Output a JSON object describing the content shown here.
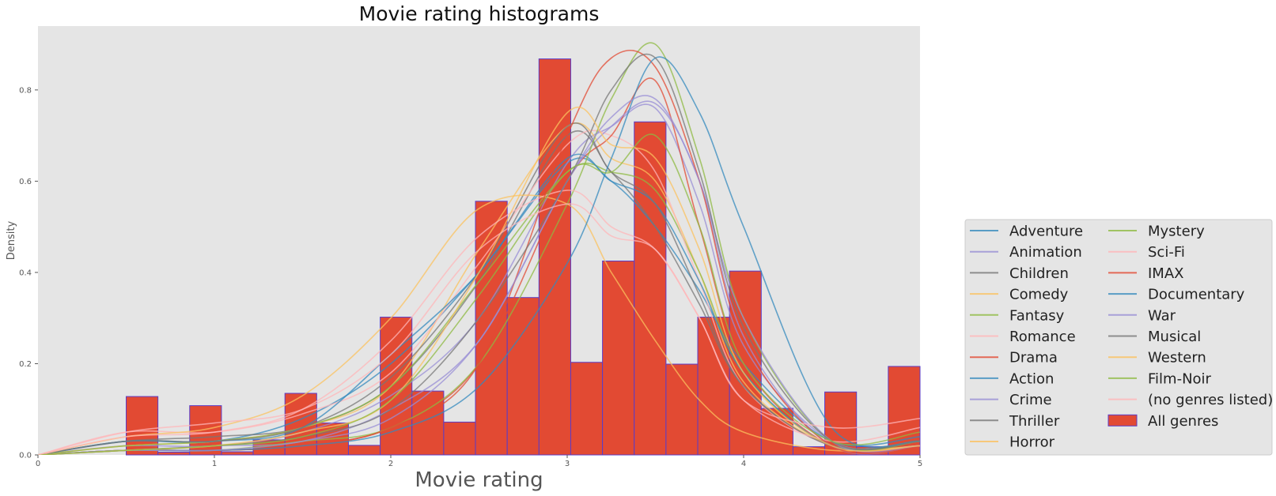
{
  "chart_data": {
    "type": "bar",
    "title": "Movie rating histograms",
    "xlabel": "Movie rating",
    "ylabel": "Density",
    "xlim": [
      0,
      5
    ],
    "ylim": [
      0,
      0.94
    ],
    "x_ticks": [
      "0",
      "1",
      "2",
      "3",
      "4",
      "5"
    ],
    "y_ticks": [
      "0.0",
      "0.2",
      "0.4",
      "0.6",
      "0.8"
    ],
    "grid": false,
    "legend_position": "right",
    "histogram": {
      "name": "All genres",
      "color": "#E24A33",
      "edge_color": "#5a3cc8",
      "bin_edges": [
        0.5,
        0.68,
        0.86,
        1.04,
        1.22,
        1.4,
        1.58,
        1.76,
        1.94,
        2.12,
        2.3,
        2.48,
        2.66,
        2.84,
        3.02,
        3.2,
        3.38,
        3.56,
        3.74,
        3.92,
        4.1,
        4.28,
        4.46,
        4.64,
        4.82,
        5.0
      ],
      "values": [
        0.128,
        0.006,
        0.108,
        0.007,
        0.033,
        0.135,
        0.07,
        0.021,
        0.302,
        0.14,
        0.072,
        0.556,
        0.345,
        0.868,
        0.203,
        0.425,
        0.73,
        0.199,
        0.302,
        0.403,
        0.102,
        0.018,
        0.138,
        0.018,
        0.194
      ]
    },
    "series": [
      {
        "name": "Adventure",
        "color": "#348ABD",
        "x": [
          0,
          0.5,
          1.0,
          1.5,
          2.0,
          2.5,
          3.0,
          3.25,
          3.5,
          3.75,
          4.0,
          4.5,
          5.0
        ],
        "values": [
          0,
          0.03,
          0.03,
          0.08,
          0.2,
          0.4,
          0.64,
          0.6,
          0.5,
          0.36,
          0.2,
          0.03,
          0.04
        ]
      },
      {
        "name": "Animation",
        "color": "#988ED5",
        "x": [
          0,
          0.5,
          1.0,
          1.5,
          2.0,
          2.5,
          3.0,
          3.25,
          3.5,
          3.75,
          4.0,
          4.5,
          5.0
        ],
        "values": [
          0,
          0.02,
          0.02,
          0.05,
          0.13,
          0.3,
          0.64,
          0.72,
          0.76,
          0.55,
          0.24,
          0.03,
          0.02
        ]
      },
      {
        "name": "Children",
        "color": "#777777",
        "x": [
          0,
          0.5,
          1.0,
          1.5,
          2.0,
          2.5,
          3.0,
          3.25,
          3.5,
          3.75,
          4.0,
          4.5,
          5.0
        ],
        "values": [
          0,
          0.03,
          0.04,
          0.06,
          0.15,
          0.38,
          0.7,
          0.62,
          0.5,
          0.33,
          0.15,
          0.02,
          0.03
        ]
      },
      {
        "name": "Comedy",
        "color": "#FBC15E",
        "x": [
          0,
          0.5,
          1.0,
          1.5,
          2.0,
          2.5,
          3.0,
          3.25,
          3.5,
          3.75,
          4.0,
          4.5,
          5.0
        ],
        "values": [
          0,
          0.02,
          0.03,
          0.06,
          0.15,
          0.45,
          0.72,
          0.65,
          0.6,
          0.4,
          0.16,
          0.02,
          0.02
        ]
      },
      {
        "name": "Fantasy",
        "color": "#8EBA42",
        "x": [
          0,
          0.5,
          1.0,
          1.5,
          2.0,
          2.5,
          3.0,
          3.25,
          3.5,
          3.75,
          4.0,
          4.5,
          5.0
        ],
        "values": [
          0,
          0.02,
          0.03,
          0.06,
          0.15,
          0.38,
          0.62,
          0.62,
          0.58,
          0.4,
          0.18,
          0.02,
          0.03
        ]
      },
      {
        "name": "Romance",
        "color": "#FFB5B8",
        "x": [
          0,
          0.5,
          1.0,
          1.5,
          2.0,
          2.5,
          3.0,
          3.25,
          3.5,
          3.75,
          4.0,
          4.5,
          5.0
        ],
        "values": [
          0,
          0.05,
          0.05,
          0.09,
          0.18,
          0.42,
          0.68,
          0.7,
          0.62,
          0.38,
          0.15,
          0.02,
          0.03
        ]
      },
      {
        "name": "Drama",
        "color": "#E24A33",
        "x": [
          0,
          0.5,
          1.0,
          1.5,
          2.0,
          2.5,
          3.0,
          3.25,
          3.5,
          3.75,
          4.0,
          4.5,
          5.0
        ],
        "values": [
          0,
          0.01,
          0.01,
          0.02,
          0.06,
          0.2,
          0.6,
          0.7,
          0.82,
          0.5,
          0.2,
          0.02,
          0.02
        ]
      },
      {
        "name": "Action",
        "color": "#348ABD",
        "x": [
          0,
          0.5,
          1.0,
          1.5,
          2.0,
          2.5,
          3.0,
          3.25,
          3.5,
          3.75,
          4.0,
          4.5,
          5.0
        ],
        "values": [
          0,
          0.03,
          0.03,
          0.06,
          0.22,
          0.4,
          0.65,
          0.6,
          0.55,
          0.38,
          0.18,
          0.02,
          0.03
        ]
      },
      {
        "name": "Crime",
        "color": "#988ED5",
        "x": [
          0,
          0.5,
          1.0,
          1.5,
          2.0,
          2.5,
          3.0,
          3.25,
          3.5,
          3.75,
          4.0,
          4.5,
          5.0
        ],
        "values": [
          0,
          0.01,
          0.02,
          0.03,
          0.1,
          0.25,
          0.6,
          0.72,
          0.77,
          0.6,
          0.26,
          0.02,
          0.02
        ]
      },
      {
        "name": "Thriller",
        "color": "#777777",
        "x": [
          0,
          0.5,
          1.0,
          1.5,
          2.0,
          2.5,
          3.0,
          3.25,
          3.5,
          3.75,
          4.0,
          4.5,
          5.0
        ],
        "values": [
          0,
          0.03,
          0.03,
          0.06,
          0.17,
          0.4,
          0.72,
          0.62,
          0.55,
          0.35,
          0.15,
          0.02,
          0.03
        ]
      },
      {
        "name": "Horror",
        "color": "#FBC15E",
        "x": [
          0,
          0.5,
          1.0,
          1.5,
          2.0,
          2.5,
          3.0,
          3.25,
          3.5,
          3.75,
          4.0,
          4.5,
          5.0
        ],
        "values": [
          0,
          0.04,
          0.06,
          0.13,
          0.3,
          0.54,
          0.55,
          0.4,
          0.25,
          0.12,
          0.05,
          0.01,
          0.02
        ]
      },
      {
        "name": "Mystery",
        "color": "#8EBA42",
        "x": [
          0,
          0.5,
          1.0,
          1.5,
          2.0,
          2.5,
          3.0,
          3.25,
          3.5,
          3.75,
          4.0,
          4.5,
          5.0
        ],
        "values": [
          0,
          0.01,
          0.01,
          0.03,
          0.06,
          0.2,
          0.55,
          0.78,
          0.9,
          0.65,
          0.3,
          0.03,
          0.03
        ]
      },
      {
        "name": "Sci-Fi",
        "color": "#FFB5B8",
        "x": [
          0,
          0.5,
          1.0,
          1.5,
          2.0,
          2.5,
          3.0,
          3.25,
          3.5,
          3.75,
          4.0,
          4.5,
          5.0
        ],
        "values": [
          0,
          0.04,
          0.05,
          0.1,
          0.25,
          0.48,
          0.58,
          0.5,
          0.45,
          0.3,
          0.12,
          0.03,
          0.06
        ]
      },
      {
        "name": "IMAX",
        "color": "#E24A33",
        "x": [
          0,
          0.5,
          1.0,
          1.5,
          2.0,
          2.5,
          3.0,
          3.25,
          3.5,
          3.75,
          4.0,
          4.5,
          5.0
        ],
        "values": [
          0,
          0.01,
          0.01,
          0.02,
          0.06,
          0.2,
          0.7,
          0.87,
          0.85,
          0.6,
          0.25,
          0.02,
          0.02
        ]
      },
      {
        "name": "Documentary",
        "color": "#348ABD",
        "x": [
          0,
          0.5,
          1.0,
          1.5,
          2.0,
          2.5,
          3.0,
          3.25,
          3.5,
          3.75,
          4.0,
          4.5,
          5.0
        ],
        "values": [
          0,
          0.01,
          0.01,
          0.02,
          0.05,
          0.15,
          0.42,
          0.65,
          0.87,
          0.75,
          0.5,
          0.06,
          0.03
        ]
      },
      {
        "name": "War",
        "color": "#988ED5",
        "x": [
          0,
          0.5,
          1.0,
          1.5,
          2.0,
          2.5,
          3.0,
          3.25,
          3.5,
          3.75,
          4.0,
          4.5,
          5.0
        ],
        "values": [
          0,
          0.01,
          0.01,
          0.03,
          0.08,
          0.25,
          0.6,
          0.74,
          0.78,
          0.6,
          0.3,
          0.03,
          0.02
        ]
      },
      {
        "name": "Musical",
        "color": "#777777",
        "x": [
          0,
          0.5,
          1.0,
          1.5,
          2.0,
          2.5,
          3.0,
          3.25,
          3.5,
          3.75,
          4.0,
          4.5,
          5.0
        ],
        "values": [
          0,
          0.01,
          0.02,
          0.04,
          0.1,
          0.3,
          0.6,
          0.8,
          0.87,
          0.62,
          0.28,
          0.03,
          0.03
        ]
      },
      {
        "name": "Western",
        "color": "#FBC15E",
        "x": [
          0,
          0.5,
          1.0,
          1.5,
          2.0,
          2.5,
          3.0,
          3.25,
          3.5,
          3.75,
          4.0,
          4.5,
          5.0
        ],
        "values": [
          0,
          0.01,
          0.02,
          0.05,
          0.12,
          0.4,
          0.75,
          0.68,
          0.65,
          0.45,
          0.18,
          0.02,
          0.02
        ]
      },
      {
        "name": "Film-Noir",
        "color": "#8EBA42",
        "x": [
          0,
          0.5,
          1.0,
          1.5,
          2.0,
          2.5,
          3.0,
          3.25,
          3.5,
          3.75,
          4.0,
          4.5,
          5.0
        ],
        "values": [
          0,
          0.01,
          0.02,
          0.04,
          0.12,
          0.35,
          0.62,
          0.62,
          0.7,
          0.5,
          0.2,
          0.03,
          0.05
        ]
      },
      {
        "name": "(no genres listed)",
        "color": "#FFB5B8",
        "x": [
          0,
          0.5,
          1.0,
          1.5,
          2.0,
          2.5,
          3.0,
          3.25,
          3.5,
          3.75,
          4.0,
          4.5,
          5.0
        ],
        "values": [
          0,
          0.05,
          0.07,
          0.1,
          0.22,
          0.45,
          0.55,
          0.48,
          0.45,
          0.3,
          0.12,
          0.06,
          0.08
        ]
      }
    ]
  }
}
